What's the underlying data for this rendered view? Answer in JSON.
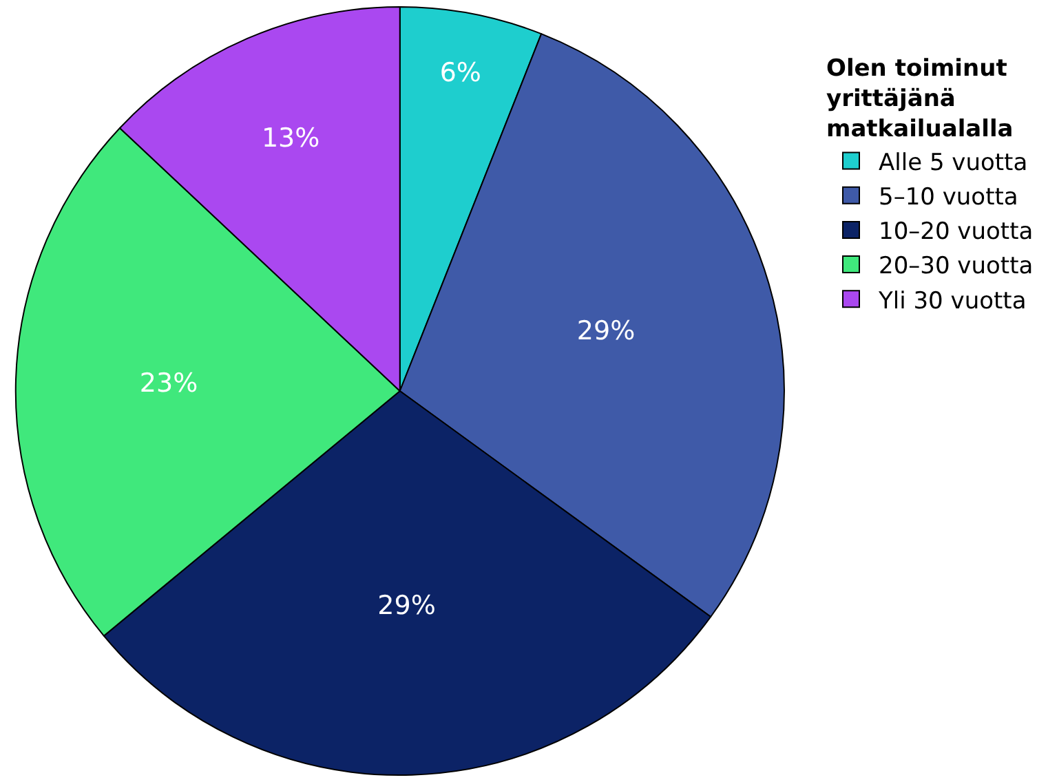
{
  "chart_data": {
    "type": "pie",
    "legend_title": "Olen toiminut\nyrittäjänä\nmatkailualalla",
    "categories": [
      "Alle 5 vuotta",
      "5–10 vuotta",
      "10–20 vuotta",
      "20–30 vuotta",
      "Yli 30 vuotta"
    ],
    "values": [
      6,
      29,
      29,
      23,
      13
    ],
    "colors": [
      "#1ecece",
      "#3f5aa8",
      "#0c2366",
      "#40e87c",
      "#aa48f0"
    ],
    "value_labels": [
      "6%",
      "29%",
      "29%",
      "23%",
      "13%"
    ],
    "legend": "top right"
  }
}
